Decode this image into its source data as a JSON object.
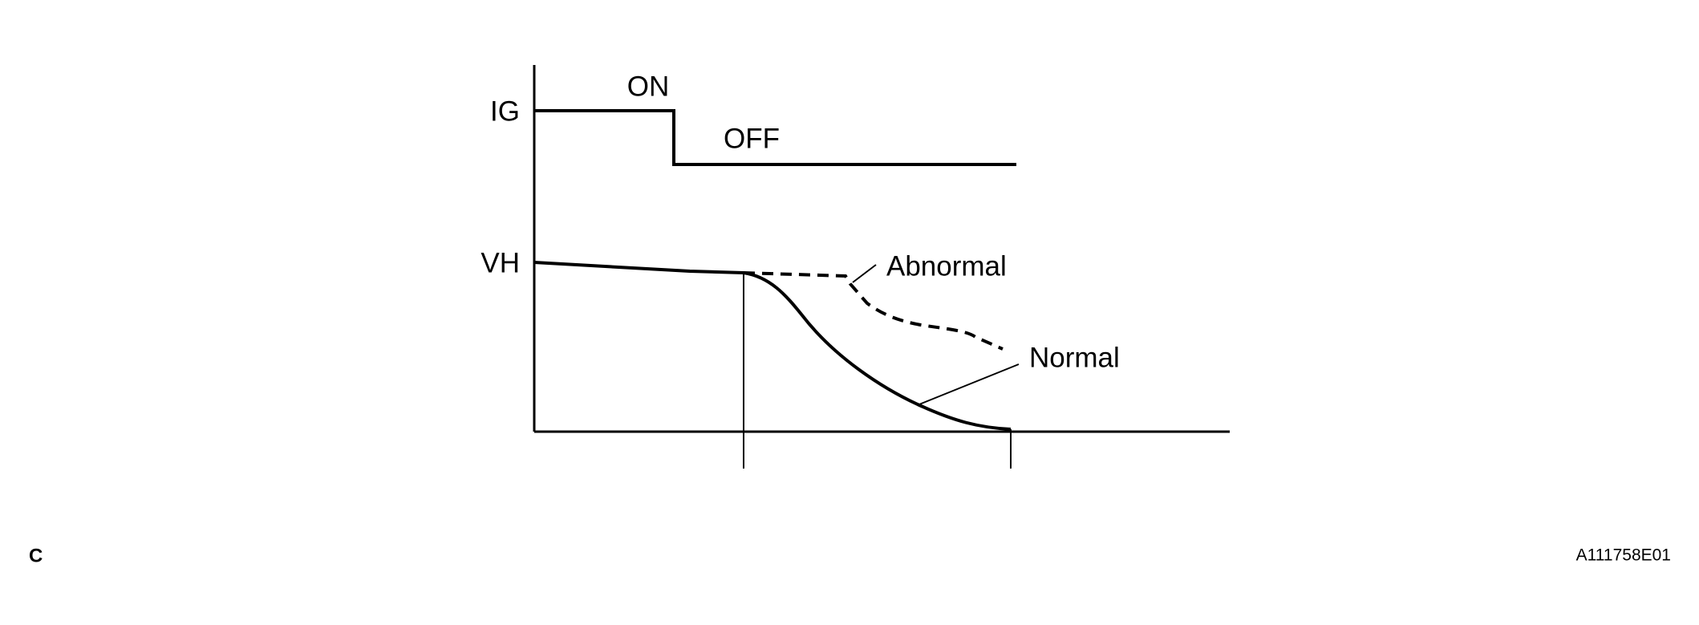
{
  "labels": {
    "ig": "IG",
    "on": "ON",
    "off": "OFF",
    "vh": "VH",
    "abnormal": "Abnormal",
    "normal": "Normal"
  },
  "footer": {
    "left": "C",
    "right": "A111758E01"
  }
}
